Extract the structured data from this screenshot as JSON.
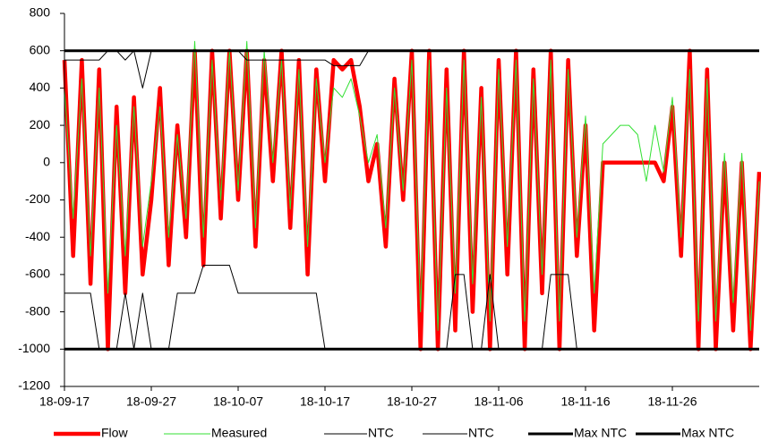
{
  "chart_data": {
    "type": "line",
    "x": [
      "18-09-17",
      "18-09-18",
      "18-09-19",
      "18-09-20",
      "18-09-21",
      "18-09-22",
      "18-09-23",
      "18-09-24",
      "18-09-25",
      "18-09-26",
      "18-09-27",
      "18-09-28",
      "18-09-29",
      "18-09-30",
      "18-10-01",
      "18-10-02",
      "18-10-03",
      "18-10-04",
      "18-10-05",
      "18-10-06",
      "18-10-07",
      "18-10-08",
      "18-10-09",
      "18-10-10",
      "18-10-11",
      "18-10-12",
      "18-10-13",
      "18-10-14",
      "18-10-15",
      "18-10-16",
      "18-10-17",
      "18-10-18",
      "18-10-19",
      "18-10-20",
      "18-10-21",
      "18-10-22",
      "18-10-23",
      "18-10-24",
      "18-10-25",
      "18-10-26",
      "18-10-27",
      "18-10-28",
      "18-10-29",
      "18-10-30",
      "18-10-31",
      "18-11-01",
      "18-11-02",
      "18-11-03",
      "18-11-04",
      "18-11-05",
      "18-11-06",
      "18-11-07",
      "18-11-08",
      "18-11-09",
      "18-11-10",
      "18-11-11",
      "18-11-12",
      "18-11-13",
      "18-11-14",
      "18-11-15",
      "18-11-16",
      "18-11-17",
      "18-11-18",
      "18-11-19",
      "18-11-20",
      "18-11-21",
      "18-11-22",
      "18-11-23",
      "18-11-24",
      "18-11-25",
      "18-11-26",
      "18-11-27",
      "18-11-28",
      "18-11-29",
      "18-11-30",
      "18-12-01",
      "18-12-02",
      "18-12-03",
      "18-12-04",
      "18-12-05",
      "18-12-06"
    ],
    "series": [
      {
        "name": "Flow",
        "color": "#ff0000",
        "values": [
          550,
          -500,
          550,
          -650,
          500,
          -1000,
          300,
          -700,
          350,
          -600,
          -200,
          400,
          -550,
          200,
          -400,
          600,
          -550,
          600,
          -300,
          600,
          -200,
          600,
          -450,
          550,
          -100,
          600,
          -350,
          550,
          -600,
          500,
          -100,
          550,
          500,
          550,
          300,
          -100,
          100,
          -450,
          450,
          -200,
          600,
          -1000,
          600,
          -1000,
          500,
          -900,
          600,
          -800,
          400,
          -1000,
          550,
          -600,
          600,
          -1000,
          500,
          -700,
          600,
          -1000,
          550,
          -500,
          200,
          -900,
          0,
          0,
          0,
          0,
          0,
          0,
          0,
          -100,
          300,
          -500,
          600,
          -1000,
          500,
          -1000,
          0,
          -900,
          0,
          -1000,
          -50
        ]
      },
      {
        "name": "Measured",
        "color": "#33e033",
        "values": [
          400,
          -300,
          450,
          -500,
          400,
          -700,
          200,
          -500,
          300,
          -450,
          -100,
          300,
          -400,
          150,
          -300,
          650,
          -400,
          550,
          -200,
          600,
          -150,
          650,
          -350,
          600,
          0,
          550,
          -250,
          500,
          -450,
          450,
          0,
          400,
          350,
          450,
          250,
          0,
          150,
          -350,
          400,
          -150,
          550,
          -800,
          550,
          -900,
          400,
          -700,
          550,
          -650,
          350,
          -850,
          500,
          -450,
          550,
          -850,
          450,
          -600,
          550,
          -850,
          500,
          -400,
          250,
          -700,
          100,
          150,
          200,
          200,
          150,
          -100,
          200,
          -50,
          350,
          -400,
          500,
          -850,
          450,
          -850,
          50,
          -750,
          50,
          -900,
          -100
        ]
      },
      {
        "name": "NTC",
        "color": "#000000",
        "values": [
          550,
          550,
          550,
          550,
          550,
          600,
          600,
          550,
          600,
          400,
          600,
          600,
          600,
          600,
          600,
          600,
          600,
          600,
          600,
          600,
          600,
          550,
          550,
          550,
          550,
          550,
          550,
          550,
          550,
          550,
          550,
          520,
          520,
          520,
          520,
          600,
          600,
          600,
          600,
          600,
          600,
          600,
          600,
          600,
          600,
          600,
          600,
          600,
          600,
          600,
          600,
          600,
          600,
          600,
          600,
          600,
          600,
          600,
          600,
          600,
          600,
          600,
          600,
          600,
          600,
          600,
          600,
          600,
          600,
          600,
          600,
          600,
          600,
          600,
          600,
          600,
          600,
          600,
          600,
          600,
          600
        ]
      },
      {
        "name": "NTC",
        "color": "#000000",
        "values": [
          -700,
          -700,
          -700,
          -700,
          -1000,
          -1000,
          -1000,
          -700,
          -1000,
          -700,
          -1000,
          -1000,
          -1000,
          -700,
          -700,
          -700,
          -550,
          -550,
          -550,
          -550,
          -700,
          -700,
          -700,
          -700,
          -700,
          -700,
          -700,
          -700,
          -700,
          -700,
          -1000,
          -1000,
          -1000,
          -1000,
          -1000,
          -1000,
          -1000,
          -1000,
          -1000,
          -1000,
          -1000,
          -1000,
          -1000,
          -1000,
          -1000,
          -600,
          -600,
          -1000,
          -1000,
          -600,
          -1000,
          -1000,
          -1000,
          -1000,
          -1000,
          -1000,
          -600,
          -600,
          -600,
          -1000,
          -1000,
          -1000,
          -1000,
          -1000,
          -1000,
          -1000,
          -1000,
          -1000,
          -1000,
          -1000,
          -1000,
          -1000,
          -1000,
          -1000,
          -1000,
          -1000,
          -1000,
          -1000,
          -1000,
          -1000,
          -1000
        ]
      },
      {
        "name": "Max NTC",
        "color": "#000000",
        "values": [
          600,
          600,
          600,
          600,
          600,
          600,
          600,
          600,
          600,
          600,
          600,
          600,
          600,
          600,
          600,
          600,
          600,
          600,
          600,
          600,
          600,
          600,
          600,
          600,
          600,
          600,
          600,
          600,
          600,
          600,
          600,
          600,
          600,
          600,
          600,
          600,
          600,
          600,
          600,
          600,
          600,
          600,
          600,
          600,
          600,
          600,
          600,
          600,
          600,
          600,
          600,
          600,
          600,
          600,
          600,
          600,
          600,
          600,
          600,
          600,
          600,
          600,
          600,
          600,
          600,
          600,
          600,
          600,
          600,
          600,
          600,
          600,
          600,
          600,
          600,
          600,
          600,
          600,
          600,
          600,
          600
        ]
      },
      {
        "name": "Max NTC",
        "color": "#000000",
        "values": [
          -1000,
          -1000,
          -1000,
          -1000,
          -1000,
          -1000,
          -1000,
          -1000,
          -1000,
          -1000,
          -1000,
          -1000,
          -1000,
          -1000,
          -1000,
          -1000,
          -1000,
          -1000,
          -1000,
          -1000,
          -1000,
          -1000,
          -1000,
          -1000,
          -1000,
          -1000,
          -1000,
          -1000,
          -1000,
          -1000,
          -1000,
          -1000,
          -1000,
          -1000,
          -1000,
          -1000,
          -1000,
          -1000,
          -1000,
          -1000,
          -1000,
          -1000,
          -1000,
          -1000,
          -1000,
          -1000,
          -1000,
          -1000,
          -1000,
          -1000,
          -1000,
          -1000,
          -1000,
          -1000,
          -1000,
          -1000,
          -1000,
          -1000,
          -1000,
          -1000,
          -1000,
          -1000,
          -1000,
          -1000,
          -1000,
          -1000,
          -1000,
          -1000,
          -1000,
          -1000,
          -1000,
          -1000,
          -1000,
          -1000,
          -1000,
          -1000,
          -1000,
          -1000,
          -1000,
          -1000,
          -1000
        ]
      }
    ],
    "xlim": [
      "18-09-17",
      "18-12-06"
    ],
    "xticks": [
      "18-09-17",
      "18-09-27",
      "18-10-07",
      "18-10-17",
      "18-10-27",
      "18-11-06",
      "18-11-16",
      "18-11-26"
    ],
    "ylim": [
      -1200,
      800
    ],
    "yticks": [
      -1200,
      -1000,
      -800,
      -600,
      -400,
      -200,
      0,
      200,
      400,
      600,
      800
    ],
    "grid": false,
    "legend": "bottom"
  }
}
